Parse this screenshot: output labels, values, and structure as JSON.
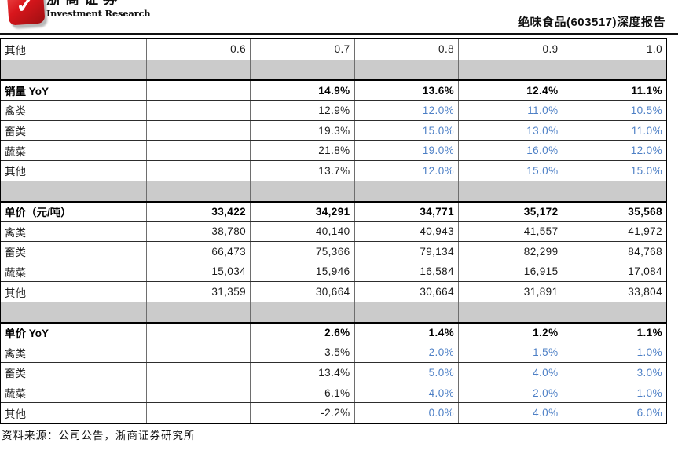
{
  "header": {
    "brand_cn": "浙商证券",
    "brand_en": "Investment Research",
    "logo_icon": "check-mark",
    "report_title": "绝味食品(603517)深度报告"
  },
  "colors": {
    "accent_red": "#D8161C",
    "forecast_blue": "#4E80C6",
    "spacer_gray": "#CBCBCB"
  },
  "table": {
    "columns": [
      "label",
      "col1",
      "col2",
      "col3",
      "col4",
      "col5"
    ],
    "rows": [
      {
        "type": "normal",
        "label": "其他",
        "cells": [
          {
            "t": "0.6"
          },
          {
            "t": "0.7"
          },
          {
            "t": "0.8"
          },
          {
            "t": "0.9"
          },
          {
            "t": "1.0"
          }
        ]
      },
      {
        "type": "spacer",
        "label": "",
        "cells": [
          {
            "t": ""
          },
          {
            "t": ""
          },
          {
            "t": ""
          },
          {
            "t": ""
          },
          {
            "t": ""
          }
        ]
      },
      {
        "type": "section",
        "label": "销量 YoY",
        "cells": [
          {
            "t": ""
          },
          {
            "t": "14.9%"
          },
          {
            "t": "13.6%"
          },
          {
            "t": "12.4%"
          },
          {
            "t": "11.1%"
          }
        ]
      },
      {
        "type": "normal",
        "label": "禽类",
        "cells": [
          {
            "t": ""
          },
          {
            "t": "12.9%"
          },
          {
            "t": "12.0%",
            "blue": true
          },
          {
            "t": "11.0%",
            "blue": true
          },
          {
            "t": "10.5%",
            "blue": true
          }
        ]
      },
      {
        "type": "normal",
        "label": "畜类",
        "cells": [
          {
            "t": ""
          },
          {
            "t": "19.3%"
          },
          {
            "t": "15.0%",
            "blue": true
          },
          {
            "t": "13.0%",
            "blue": true
          },
          {
            "t": "11.0%",
            "blue": true
          }
        ]
      },
      {
        "type": "normal",
        "label": "蔬菜",
        "cells": [
          {
            "t": ""
          },
          {
            "t": "21.8%"
          },
          {
            "t": "19.0%",
            "blue": true
          },
          {
            "t": "16.0%",
            "blue": true
          },
          {
            "t": "12.0%",
            "blue": true
          }
        ]
      },
      {
        "type": "normal",
        "label": "其他",
        "cells": [
          {
            "t": ""
          },
          {
            "t": "13.7%"
          },
          {
            "t": "12.0%",
            "blue": true
          },
          {
            "t": "15.0%",
            "blue": true
          },
          {
            "t": "15.0%",
            "blue": true
          }
        ]
      },
      {
        "type": "spacer",
        "label": "",
        "cells": [
          {
            "t": ""
          },
          {
            "t": ""
          },
          {
            "t": ""
          },
          {
            "t": ""
          },
          {
            "t": ""
          }
        ]
      },
      {
        "type": "section",
        "label": "单价（元/吨）",
        "cells": [
          {
            "t": "33,422"
          },
          {
            "t": "34,291"
          },
          {
            "t": "34,771"
          },
          {
            "t": "35,172"
          },
          {
            "t": "35,568"
          }
        ]
      },
      {
        "type": "normal",
        "label": "禽类",
        "cells": [
          {
            "t": "38,780"
          },
          {
            "t": "40,140"
          },
          {
            "t": "40,943"
          },
          {
            "t": "41,557"
          },
          {
            "t": "41,972"
          }
        ]
      },
      {
        "type": "normal",
        "label": "畜类",
        "cells": [
          {
            "t": "66,473"
          },
          {
            "t": "75,366"
          },
          {
            "t": "79,134"
          },
          {
            "t": "82,299"
          },
          {
            "t": "84,768"
          }
        ]
      },
      {
        "type": "normal",
        "label": "蔬菜",
        "cells": [
          {
            "t": "15,034"
          },
          {
            "t": "15,946"
          },
          {
            "t": "16,584"
          },
          {
            "t": "16,915"
          },
          {
            "t": "17,084"
          }
        ]
      },
      {
        "type": "normal",
        "label": "其他",
        "cells": [
          {
            "t": "31,359"
          },
          {
            "t": "30,664"
          },
          {
            "t": "30,664"
          },
          {
            "t": "31,891"
          },
          {
            "t": "33,804"
          }
        ]
      },
      {
        "type": "spacer",
        "label": "",
        "cells": [
          {
            "t": ""
          },
          {
            "t": ""
          },
          {
            "t": ""
          },
          {
            "t": ""
          },
          {
            "t": ""
          }
        ]
      },
      {
        "type": "section",
        "label": "单价 YoY",
        "cells": [
          {
            "t": ""
          },
          {
            "t": "2.6%"
          },
          {
            "t": "1.4%"
          },
          {
            "t": "1.2%"
          },
          {
            "t": "1.1%"
          }
        ]
      },
      {
        "type": "normal",
        "label": "禽类",
        "cells": [
          {
            "t": ""
          },
          {
            "t": "3.5%"
          },
          {
            "t": "2.0%",
            "blue": true
          },
          {
            "t": "1.5%",
            "blue": true
          },
          {
            "t": "1.0%",
            "blue": true
          }
        ]
      },
      {
        "type": "normal",
        "label": "畜类",
        "cells": [
          {
            "t": ""
          },
          {
            "t": "13.4%"
          },
          {
            "t": "5.0%",
            "blue": true
          },
          {
            "t": "4.0%",
            "blue": true
          },
          {
            "t": "3.0%",
            "blue": true
          }
        ]
      },
      {
        "type": "normal",
        "label": "蔬菜",
        "cells": [
          {
            "t": ""
          },
          {
            "t": "6.1%"
          },
          {
            "t": "4.0%",
            "blue": true
          },
          {
            "t": "2.0%",
            "blue": true
          },
          {
            "t": "1.0%",
            "blue": true
          }
        ]
      },
      {
        "type": "normal",
        "label": "其他",
        "cells": [
          {
            "t": ""
          },
          {
            "t": "-2.2%"
          },
          {
            "t": "0.0%",
            "blue": true
          },
          {
            "t": "4.0%",
            "blue": true
          },
          {
            "t": "6.0%",
            "blue": true
          }
        ]
      }
    ]
  },
  "footer": {
    "source_note": "资料来源：公司公告，浙商证券研究所"
  },
  "icons": {
    "logo_glyph": "✓"
  }
}
